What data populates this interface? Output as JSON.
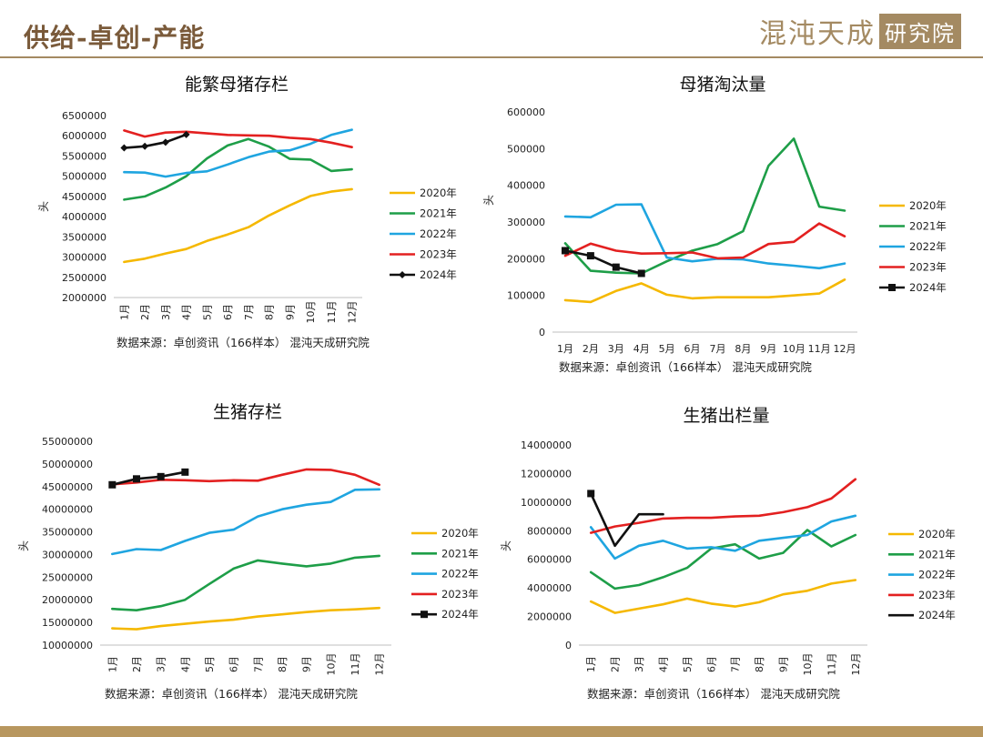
{
  "header": {
    "title": "供给-卓创-产能",
    "brand_name": "混沌天成",
    "brand_box": "研究院"
  },
  "chart_data": [
    {
      "type": "line",
      "title": "能繁母猪存栏",
      "ylabel": "头",
      "ylim": [
        2000000,
        6500000
      ],
      "yticks": [
        2000000,
        2500000,
        3000000,
        3500000,
        4000000,
        4500000,
        5000000,
        5500000,
        6000000,
        6500000
      ],
      "categories": [
        "1月",
        "2月",
        "3月",
        "4月",
        "5月",
        "6月",
        "7月",
        "8月",
        "9月",
        "10月",
        "11月",
        "12月"
      ],
      "x_labels_rotated": true,
      "source": "数据来源：卓创资讯（166样本） 混沌天成研究院",
      "series": [
        {
          "name": "2020年",
          "color": "#f5b800",
          "values": [
            2880000,
            2960000,
            3090000,
            3200000,
            3400000,
            3560000,
            3740000,
            4030000,
            4280000,
            4510000,
            4620000,
            4680000
          ]
        },
        {
          "name": "2021年",
          "color": "#1e9e48",
          "values": [
            4420000,
            4500000,
            4720000,
            5000000,
            5440000,
            5760000,
            5920000,
            5730000,
            5430000,
            5410000,
            5130000,
            5170000
          ]
        },
        {
          "name": "2022年",
          "color": "#1fa5e0",
          "values": [
            5100000,
            5090000,
            4990000,
            5080000,
            5120000,
            5290000,
            5470000,
            5610000,
            5640000,
            5800000,
            6020000,
            6150000
          ]
        },
        {
          "name": "2023年",
          "color": "#e32020",
          "values": [
            6130000,
            5980000,
            6080000,
            6100000,
            6060000,
            6020000,
            6010000,
            6000000,
            5950000,
            5920000,
            5830000,
            5720000
          ]
        },
        {
          "name": "2024年",
          "color": "#111111",
          "marker": "diamond",
          "values": [
            5700000,
            5740000,
            5840000,
            6030000,
            null,
            null,
            null,
            null,
            null,
            null,
            null,
            null
          ]
        }
      ]
    },
    {
      "type": "line",
      "title": "母猪淘汰量",
      "ylabel": "头",
      "ylim": [
        0,
        600000
      ],
      "yticks": [
        0,
        100000,
        200000,
        300000,
        400000,
        500000,
        600000
      ],
      "categories": [
        "1月",
        "2月",
        "3月",
        "4月",
        "5月",
        "6月",
        "7月",
        "8月",
        "9月",
        "10月",
        "11月",
        "12月"
      ],
      "x_labels_rotated": false,
      "source": "数据来源：卓创资讯（166样本） 混沌天成研究院",
      "series": [
        {
          "name": "2020年",
          "color": "#f5b800",
          "values": [
            87000,
            82000,
            112000,
            133000,
            102000,
            92000,
            95000,
            95000,
            95000,
            100000,
            105000,
            143000
          ]
        },
        {
          "name": "2021年",
          "color": "#1e9e48",
          "values": [
            242000,
            167000,
            162000,
            160000,
            193000,
            222000,
            240000,
            275000,
            453000,
            527000,
            342000,
            331000
          ]
        },
        {
          "name": "2022年",
          "color": "#1fa5e0",
          "values": [
            315000,
            313000,
            347000,
            348000,
            203000,
            193000,
            200000,
            198000,
            187000,
            181000,
            174000,
            187000
          ]
        },
        {
          "name": "2023年",
          "color": "#e32020",
          "values": [
            208000,
            241000,
            222000,
            214000,
            215000,
            217000,
            201000,
            203000,
            240000,
            246000,
            296000,
            261000
          ]
        },
        {
          "name": "2024年",
          "color": "#111111",
          "marker": "square",
          "values": [
            222000,
            208000,
            177000,
            160000,
            null,
            null,
            null,
            null,
            null,
            null,
            null,
            null
          ]
        }
      ]
    },
    {
      "type": "line",
      "title": "生猪存栏",
      "ylabel": "头",
      "ylim": [
        10000000,
        55000000
      ],
      "yticks": [
        10000000,
        15000000,
        20000000,
        25000000,
        30000000,
        35000000,
        40000000,
        45000000,
        50000000,
        55000000
      ],
      "categories": [
        "1月",
        "2月",
        "3月",
        "4月",
        "5月",
        "6月",
        "7月",
        "8月",
        "9月",
        "10月",
        "11月",
        "12月"
      ],
      "x_labels_rotated": true,
      "source": "数据来源：卓创资讯（166样本） 混沌天成研究院",
      "series": [
        {
          "name": "2020年",
          "color": "#f5b800",
          "values": [
            13700000,
            13500000,
            14200000,
            14700000,
            15200000,
            15600000,
            16300000,
            16800000,
            17300000,
            17700000,
            17900000,
            18200000
          ]
        },
        {
          "name": "2021年",
          "color": "#1e9e48",
          "values": [
            18000000,
            17700000,
            18600000,
            20000000,
            23500000,
            26900000,
            28700000,
            28000000,
            27400000,
            28000000,
            29300000,
            29700000
          ]
        },
        {
          "name": "2022年",
          "color": "#1fa5e0",
          "values": [
            30100000,
            31200000,
            31000000,
            33000000,
            34800000,
            35500000,
            38400000,
            40000000,
            41000000,
            41600000,
            44300000,
            44400000
          ]
        },
        {
          "name": "2023年",
          "color": "#e32020",
          "values": [
            45500000,
            45900000,
            46500000,
            46400000,
            46200000,
            46400000,
            46300000,
            47600000,
            48800000,
            48700000,
            47600000,
            45400000
          ]
        },
        {
          "name": "2024年",
          "color": "#111111",
          "marker": "square",
          "values": [
            45400000,
            46700000,
            47200000,
            48200000,
            null,
            null,
            null,
            null,
            null,
            null,
            null,
            null
          ]
        }
      ]
    },
    {
      "type": "line",
      "title": "生猪出栏量",
      "ylabel": "头",
      "ylim": [
        0,
        14000000
      ],
      "yticks": [
        0,
        2000000,
        4000000,
        6000000,
        8000000,
        10000000,
        12000000,
        14000000
      ],
      "categories": [
        "1月",
        "2月",
        "3月",
        "4月",
        "5月",
        "6月",
        "7月",
        "8月",
        "9月",
        "10月",
        "11月",
        "12月"
      ],
      "x_labels_rotated": true,
      "source": "数据来源：卓创资讯（166样本） 混沌天成研究院",
      "series": [
        {
          "name": "2020年",
          "color": "#f5b800",
          "values": [
            3050000,
            2250000,
            2550000,
            2850000,
            3250000,
            2900000,
            2700000,
            3000000,
            3550000,
            3800000,
            4300000,
            4550000
          ]
        },
        {
          "name": "2021年",
          "color": "#1e9e48",
          "values": [
            5100000,
            3950000,
            4200000,
            4750000,
            5400000,
            6750000,
            7050000,
            6050000,
            6450000,
            8050000,
            6900000,
            7700000
          ]
        },
        {
          "name": "2022年",
          "color": "#1fa5e0",
          "values": [
            8250000,
            6050000,
            6950000,
            7300000,
            6750000,
            6850000,
            6600000,
            7300000,
            7500000,
            7700000,
            8650000,
            9050000
          ]
        },
        {
          "name": "2023年",
          "color": "#e32020",
          "values": [
            7850000,
            8300000,
            8550000,
            8850000,
            8900000,
            8900000,
            9000000,
            9050000,
            9300000,
            9650000,
            10250000,
            11600000
          ]
        },
        {
          "name": "2024年",
          "color": "#111111",
          "marker": "square_first",
          "values": [
            10600000,
            6950000,
            9150000,
            9150000,
            null,
            null,
            null,
            null,
            null,
            null,
            null,
            null
          ]
        }
      ]
    }
  ]
}
